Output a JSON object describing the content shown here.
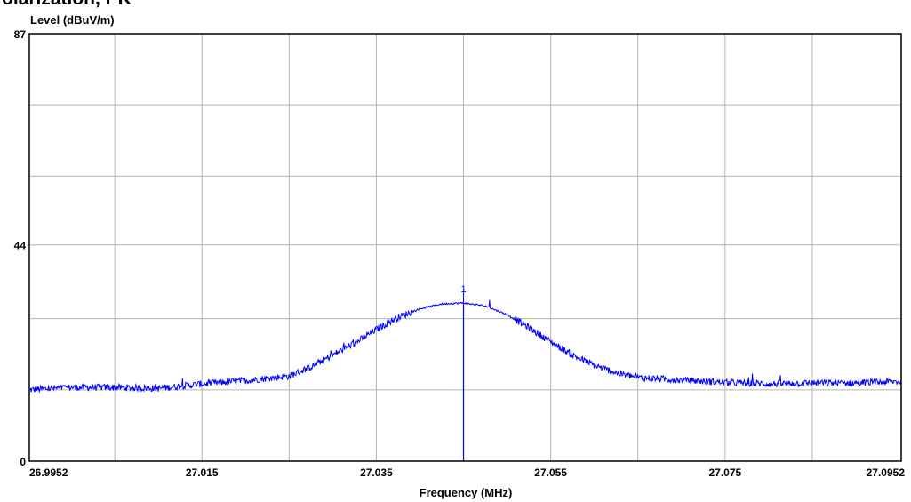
{
  "page": {
    "title": "olarization, PK"
  },
  "chart_data": {
    "type": "line",
    "ylabel": "Level (dBuV/m)",
    "xlabel": "Frequency (MHz)",
    "xlim": [
      26.9952,
      27.0952
    ],
    "ylim": [
      0,
      87
    ],
    "x_ticks": [
      26.9952,
      27.005,
      27.015,
      27.025,
      27.035,
      27.045,
      27.055,
      27.065,
      27.075,
      27.085,
      27.0952
    ],
    "x_tick_labels": [
      "26.9952",
      "",
      "27.015",
      "",
      "27.035",
      "",
      "27.055",
      "",
      "27.075",
      "",
      "27.0952"
    ],
    "y_ticks": [
      0,
      14.5,
      29,
      44,
      58,
      72.5,
      87
    ],
    "y_tick_labels": [
      "0",
      "",
      "",
      "44",
      "",
      "",
      "87"
    ],
    "grid": true,
    "line_color": "#0000ff",
    "series": [
      {
        "x": [
          26.9952,
          27.0,
          27.005,
          27.01,
          27.015,
          27.02,
          27.025,
          27.0275,
          27.03,
          27.0325,
          27.035,
          27.0375,
          27.04,
          27.0425,
          27.045,
          27.0475,
          27.05,
          27.0525,
          27.055,
          27.0575,
          27.06,
          27.0625,
          27.065,
          27.07,
          27.075,
          27.08,
          27.085,
          27.09,
          27.0952
        ],
        "values": [
          14.5,
          15.0,
          15.0,
          14.8,
          15.7,
          16.4,
          17.3,
          19.2,
          21.6,
          24.0,
          26.8,
          29.3,
          31.0,
          32.0,
          32.2,
          31.6,
          29.8,
          27.2,
          24.3,
          21.6,
          19.5,
          18.0,
          17.0,
          16.5,
          16.0,
          15.7,
          15.9,
          15.9,
          16.2
        ]
      }
    ],
    "marker": {
      "label": "1",
      "x": 27.045,
      "y": 32.2
    }
  }
}
